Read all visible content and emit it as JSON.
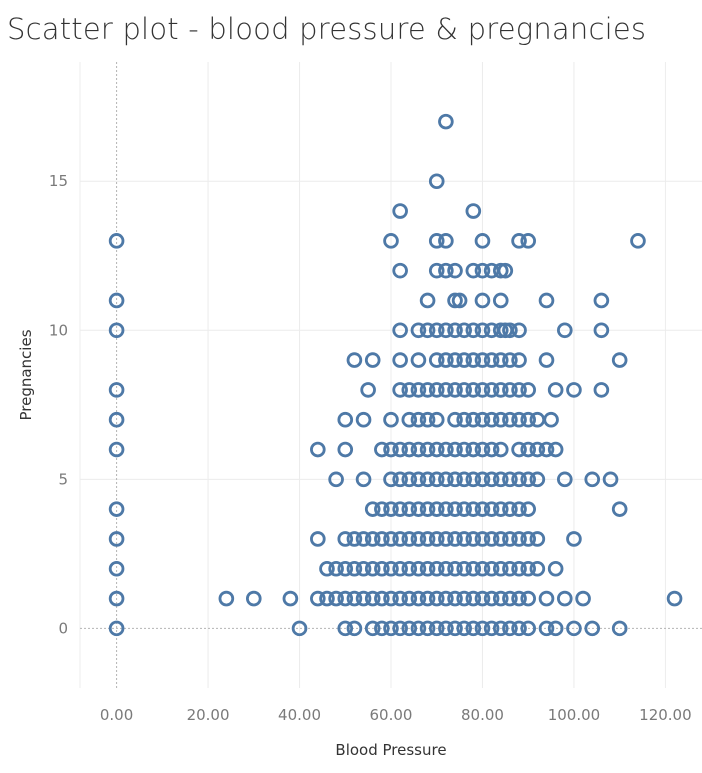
{
  "colors": {
    "marker": "#4e79a7",
    "grid": "#ececec",
    "zero_line": "#b4b4b4",
    "text": "#333333",
    "tick_text": "#7a7a7a"
  },
  "chart_data": {
    "type": "scatter",
    "title": "Scatter plot - blood pressure & pregnancies",
    "xlabel": "Blood Pressure",
    "ylabel": "Pregnancies",
    "xlim": [
      -8,
      128
    ],
    "ylim": [
      -2,
      19
    ],
    "xticks": [
      0,
      20,
      40,
      60,
      80,
      100,
      120
    ],
    "xtick_labels": [
      "0.00",
      "20.00",
      "40.00",
      "60.00",
      "80.00",
      "100.00",
      "120.00"
    ],
    "yticks": [
      0,
      5,
      10,
      15
    ],
    "ytick_labels": [
      "0",
      "5",
      "10",
      "15"
    ],
    "grid": true,
    "marker": "hollow circle",
    "points": [
      [
        72,
        17
      ],
      [
        70,
        15
      ],
      [
        62,
        14
      ],
      [
        78,
        14
      ],
      [
        0,
        13
      ],
      [
        60,
        13
      ],
      [
        70,
        13
      ],
      [
        72,
        13
      ],
      [
        80,
        13
      ],
      [
        88,
        13
      ],
      [
        90,
        13
      ],
      [
        114,
        13
      ],
      [
        62,
        12
      ],
      [
        70,
        12
      ],
      [
        72,
        12
      ],
      [
        74,
        12
      ],
      [
        78,
        12
      ],
      [
        80,
        12
      ],
      [
        82,
        12
      ],
      [
        84,
        12
      ],
      [
        85,
        12
      ],
      [
        0,
        11
      ],
      [
        68,
        11
      ],
      [
        74,
        11
      ],
      [
        75,
        11
      ],
      [
        80,
        11
      ],
      [
        84,
        11
      ],
      [
        94,
        11
      ],
      [
        106,
        11
      ],
      [
        0,
        10
      ],
      [
        62,
        10
      ],
      [
        66,
        10
      ],
      [
        68,
        10
      ],
      [
        70,
        10
      ],
      [
        72,
        10
      ],
      [
        74,
        10
      ],
      [
        76,
        10
      ],
      [
        78,
        10
      ],
      [
        80,
        10
      ],
      [
        82,
        10
      ],
      [
        84,
        10
      ],
      [
        85,
        10
      ],
      [
        86,
        10
      ],
      [
        88,
        10
      ],
      [
        98,
        10
      ],
      [
        106,
        10
      ],
      [
        52,
        9
      ],
      [
        56,
        9
      ],
      [
        62,
        9
      ],
      [
        66,
        9
      ],
      [
        70,
        9
      ],
      [
        72,
        9
      ],
      [
        74,
        9
      ],
      [
        76,
        9
      ],
      [
        78,
        9
      ],
      [
        80,
        9
      ],
      [
        82,
        9
      ],
      [
        84,
        9
      ],
      [
        86,
        9
      ],
      [
        88,
        9
      ],
      [
        94,
        9
      ],
      [
        110,
        9
      ],
      [
        0,
        8
      ],
      [
        55,
        8
      ],
      [
        62,
        8
      ],
      [
        64,
        8
      ],
      [
        66,
        8
      ],
      [
        68,
        8
      ],
      [
        70,
        8
      ],
      [
        72,
        8
      ],
      [
        74,
        8
      ],
      [
        76,
        8
      ],
      [
        78,
        8
      ],
      [
        80,
        8
      ],
      [
        82,
        8
      ],
      [
        84,
        8
      ],
      [
        86,
        8
      ],
      [
        88,
        8
      ],
      [
        90,
        8
      ],
      [
        96,
        8
      ],
      [
        100,
        8
      ],
      [
        106,
        8
      ],
      [
        0,
        7
      ],
      [
        50,
        7
      ],
      [
        54,
        7
      ],
      [
        60,
        7
      ],
      [
        64,
        7
      ],
      [
        66,
        7
      ],
      [
        68,
        7
      ],
      [
        70,
        7
      ],
      [
        74,
        7
      ],
      [
        76,
        7
      ],
      [
        78,
        7
      ],
      [
        80,
        7
      ],
      [
        82,
        7
      ],
      [
        84,
        7
      ],
      [
        86,
        7
      ],
      [
        88,
        7
      ],
      [
        90,
        7
      ],
      [
        92,
        7
      ],
      [
        95,
        7
      ],
      [
        0,
        6
      ],
      [
        44,
        6
      ],
      [
        50,
        6
      ],
      [
        58,
        6
      ],
      [
        60,
        6
      ],
      [
        62,
        6
      ],
      [
        64,
        6
      ],
      [
        66,
        6
      ],
      [
        68,
        6
      ],
      [
        70,
        6
      ],
      [
        72,
        6
      ],
      [
        74,
        6
      ],
      [
        76,
        6
      ],
      [
        78,
        6
      ],
      [
        80,
        6
      ],
      [
        82,
        6
      ],
      [
        84,
        6
      ],
      [
        88,
        6
      ],
      [
        90,
        6
      ],
      [
        92,
        6
      ],
      [
        94,
        6
      ],
      [
        96,
        6
      ],
      [
        48,
        5
      ],
      [
        54,
        5
      ],
      [
        60,
        5
      ],
      [
        62,
        5
      ],
      [
        64,
        5
      ],
      [
        66,
        5
      ],
      [
        68,
        5
      ],
      [
        70,
        5
      ],
      [
        72,
        5
      ],
      [
        74,
        5
      ],
      [
        76,
        5
      ],
      [
        78,
        5
      ],
      [
        80,
        5
      ],
      [
        82,
        5
      ],
      [
        84,
        5
      ],
      [
        86,
        5
      ],
      [
        88,
        5
      ],
      [
        90,
        5
      ],
      [
        92,
        5
      ],
      [
        98,
        5
      ],
      [
        104,
        5
      ],
      [
        108,
        5
      ],
      [
        0,
        4
      ],
      [
        56,
        4
      ],
      [
        58,
        4
      ],
      [
        60,
        4
      ],
      [
        62,
        4
      ],
      [
        64,
        4
      ],
      [
        66,
        4
      ],
      [
        68,
        4
      ],
      [
        70,
        4
      ],
      [
        72,
        4
      ],
      [
        74,
        4
      ],
      [
        76,
        4
      ],
      [
        78,
        4
      ],
      [
        80,
        4
      ],
      [
        82,
        4
      ],
      [
        84,
        4
      ],
      [
        86,
        4
      ],
      [
        88,
        4
      ],
      [
        90,
        4
      ],
      [
        110,
        4
      ],
      [
        0,
        3
      ],
      [
        44,
        3
      ],
      [
        50,
        3
      ],
      [
        52,
        3
      ],
      [
        54,
        3
      ],
      [
        56,
        3
      ],
      [
        58,
        3
      ],
      [
        60,
        3
      ],
      [
        62,
        3
      ],
      [
        64,
        3
      ],
      [
        66,
        3
      ],
      [
        68,
        3
      ],
      [
        70,
        3
      ],
      [
        72,
        3
      ],
      [
        74,
        3
      ],
      [
        76,
        3
      ],
      [
        78,
        3
      ],
      [
        80,
        3
      ],
      [
        82,
        3
      ],
      [
        84,
        3
      ],
      [
        86,
        3
      ],
      [
        88,
        3
      ],
      [
        90,
        3
      ],
      [
        92,
        3
      ],
      [
        100,
        3
      ],
      [
        0,
        2
      ],
      [
        46,
        2
      ],
      [
        48,
        2
      ],
      [
        50,
        2
      ],
      [
        52,
        2
      ],
      [
        54,
        2
      ],
      [
        56,
        2
      ],
      [
        58,
        2
      ],
      [
        60,
        2
      ],
      [
        62,
        2
      ],
      [
        64,
        2
      ],
      [
        66,
        2
      ],
      [
        68,
        2
      ],
      [
        70,
        2
      ],
      [
        72,
        2
      ],
      [
        74,
        2
      ],
      [
        76,
        2
      ],
      [
        78,
        2
      ],
      [
        80,
        2
      ],
      [
        82,
        2
      ],
      [
        84,
        2
      ],
      [
        86,
        2
      ],
      [
        88,
        2
      ],
      [
        90,
        2
      ],
      [
        92,
        2
      ],
      [
        96,
        2
      ],
      [
        0,
        1
      ],
      [
        24,
        1
      ],
      [
        30,
        1
      ],
      [
        38,
        1
      ],
      [
        44,
        1
      ],
      [
        46,
        1
      ],
      [
        48,
        1
      ],
      [
        50,
        1
      ],
      [
        52,
        1
      ],
      [
        54,
        1
      ],
      [
        56,
        1
      ],
      [
        58,
        1
      ],
      [
        60,
        1
      ],
      [
        62,
        1
      ],
      [
        64,
        1
      ],
      [
        66,
        1
      ],
      [
        68,
        1
      ],
      [
        70,
        1
      ],
      [
        72,
        1
      ],
      [
        74,
        1
      ],
      [
        76,
        1
      ],
      [
        78,
        1
      ],
      [
        80,
        1
      ],
      [
        82,
        1
      ],
      [
        84,
        1
      ],
      [
        86,
        1
      ],
      [
        88,
        1
      ],
      [
        90,
        1
      ],
      [
        94,
        1
      ],
      [
        98,
        1
      ],
      [
        102,
        1
      ],
      [
        122,
        1
      ],
      [
        0,
        0
      ],
      [
        40,
        0
      ],
      [
        50,
        0
      ],
      [
        52,
        0
      ],
      [
        56,
        0
      ],
      [
        58,
        0
      ],
      [
        60,
        0
      ],
      [
        62,
        0
      ],
      [
        64,
        0
      ],
      [
        66,
        0
      ],
      [
        68,
        0
      ],
      [
        70,
        0
      ],
      [
        72,
        0
      ],
      [
        74,
        0
      ],
      [
        76,
        0
      ],
      [
        78,
        0
      ],
      [
        80,
        0
      ],
      [
        82,
        0
      ],
      [
        84,
        0
      ],
      [
        86,
        0
      ],
      [
        88,
        0
      ],
      [
        90,
        0
      ],
      [
        94,
        0
      ],
      [
        96,
        0
      ],
      [
        100,
        0
      ],
      [
        104,
        0
      ],
      [
        110,
        0
      ]
    ]
  }
}
